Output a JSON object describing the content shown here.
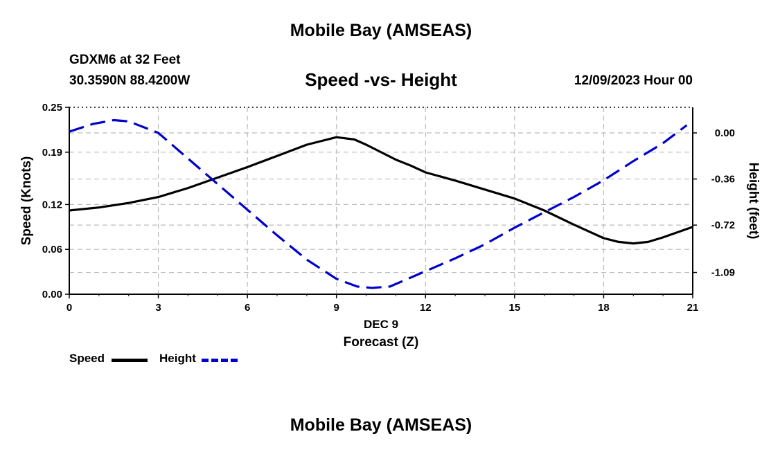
{
  "header": {
    "title": "Mobile Bay (AMSEAS)",
    "station": "GDXM6 at 32 Feet",
    "coords": "30.3590N  88.4200W",
    "chart_title": "Speed -vs- Height",
    "date_hour": "12/09/2023 Hour 00"
  },
  "footer": {
    "title": "Mobile Bay (AMSEAS)"
  },
  "legend": {
    "items": [
      {
        "label": "Speed",
        "color": "#000000",
        "style": "solid"
      },
      {
        "label": "Height",
        "color": "#0000cc",
        "style": "dashed"
      }
    ]
  },
  "chart_data": {
    "type": "line",
    "title": "Speed -vs- Height",
    "xlabel": "Forecast (Z)",
    "xsublabel": "DEC 9",
    "ylabel_left": "Speed (Knots)",
    "ylabel_right": "Height (feet)",
    "xlim": [
      0,
      21
    ],
    "ylim_left": [
      0,
      0.25
    ],
    "ylim_right": [
      -1.26,
      0.2
    ],
    "x_ticks": [
      "0",
      "3",
      "6",
      "9",
      "12",
      "15",
      "18",
      "21"
    ],
    "y_ticks_left": [
      "0.00",
      "0.06",
      "0.12",
      "0.19",
      "0.25"
    ],
    "y_ticks_right": [
      "0.00",
      "-0.36",
      "-0.72",
      "-1.09"
    ],
    "grid": true,
    "legend_position": "bottom-left",
    "series": [
      {
        "name": "Speed",
        "axis": "left",
        "color": "#000000",
        "style": "solid",
        "x": [
          0,
          1,
          2,
          3,
          4,
          5,
          6,
          7,
          8,
          9,
          9.6,
          10,
          11,
          11.5,
          12,
          13,
          14,
          15,
          16,
          17,
          18,
          18.5,
          19,
          19.5,
          20,
          21
        ],
        "values": [
          0.112,
          0.116,
          0.122,
          0.13,
          0.142,
          0.156,
          0.17,
          0.185,
          0.2,
          0.21,
          0.207,
          0.2,
          0.18,
          0.172,
          0.163,
          0.152,
          0.14,
          0.128,
          0.112,
          0.093,
          0.075,
          0.07,
          0.068,
          0.07,
          0.076,
          0.09
        ]
      },
      {
        "name": "Height",
        "axis": "right",
        "color": "#0000cc",
        "style": "dashed",
        "x": [
          0,
          0.8,
          1.5,
          2,
          3,
          4,
          5,
          6,
          7,
          8,
          9,
          9.7,
          10.2,
          10.8,
          12,
          13,
          14,
          15,
          16,
          17,
          18,
          19,
          20,
          20.8
        ],
        "values": [
          0.01,
          0.07,
          0.1,
          0.09,
          0.0,
          -0.2,
          -0.4,
          -0.6,
          -0.8,
          -0.99,
          -1.14,
          -1.2,
          -1.21,
          -1.2,
          -1.08,
          -0.98,
          -0.87,
          -0.74,
          -0.62,
          -0.5,
          -0.37,
          -0.22,
          -0.08,
          0.06
        ]
      }
    ]
  }
}
